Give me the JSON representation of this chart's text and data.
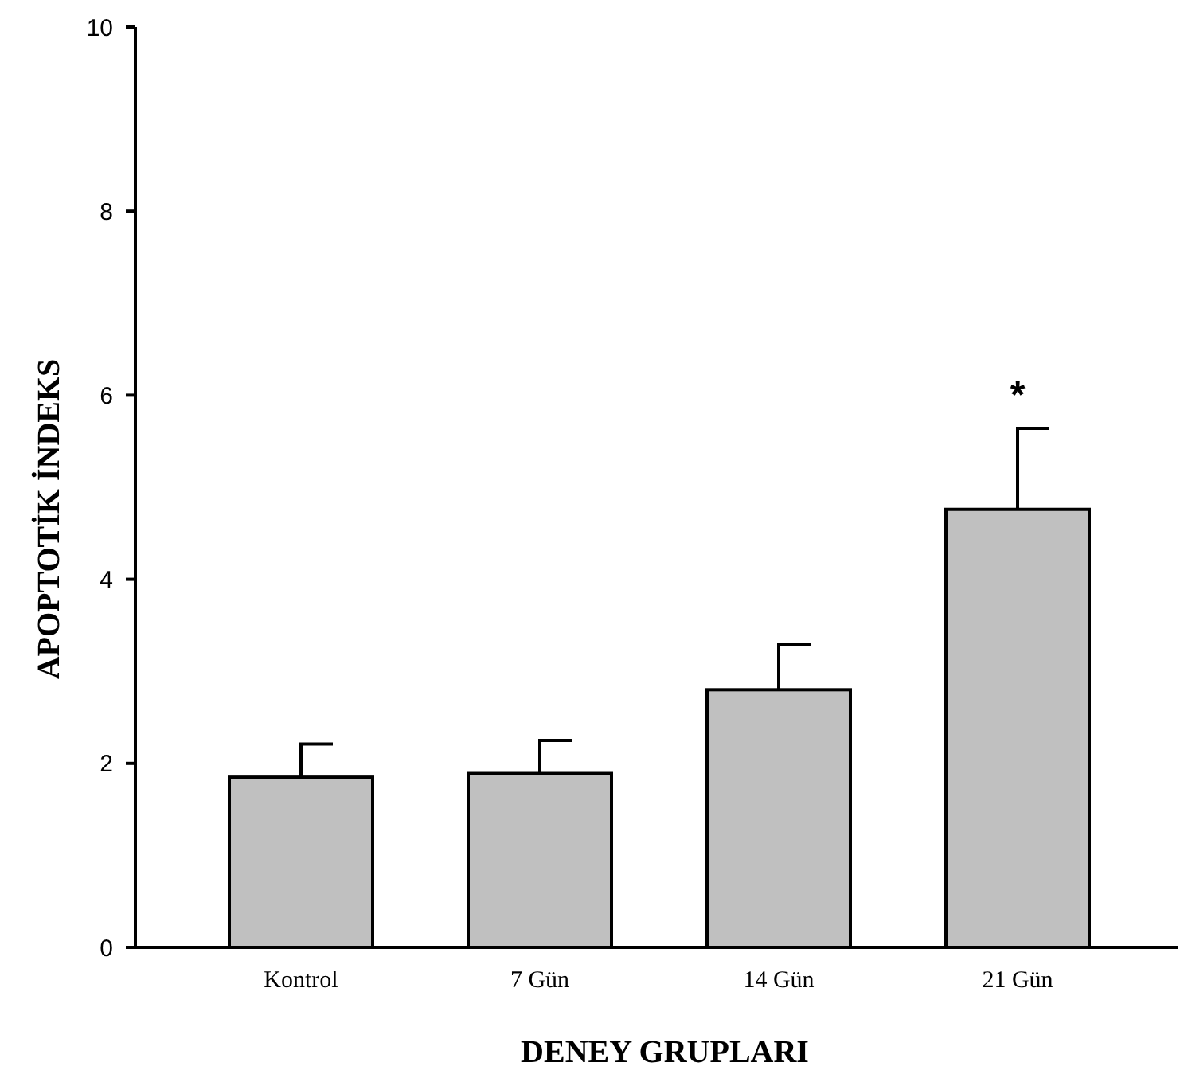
{
  "chart_data": {
    "type": "bar",
    "xlabel": "DENEY GRUPLARI",
    "ylabel": "APOPTOTİK İNDEKS",
    "categories": [
      "Kontrol",
      "7 Gün",
      "14 Gün",
      "21 Gün"
    ],
    "values": [
      1.85,
      1.89,
      2.8,
      4.76
    ],
    "errors": [
      [
        1.85,
        2.21
      ],
      [
        1.89,
        2.25
      ],
      [
        2.8,
        3.29
      ],
      [
        4.76,
        5.64
      ]
    ],
    "color": "#c0c0c0",
    "ylim": [
      0,
      10
    ],
    "yticks": [
      0,
      2,
      4,
      6,
      8,
      10
    ],
    "grid": false,
    "annotations": [
      "*"
    ]
  }
}
